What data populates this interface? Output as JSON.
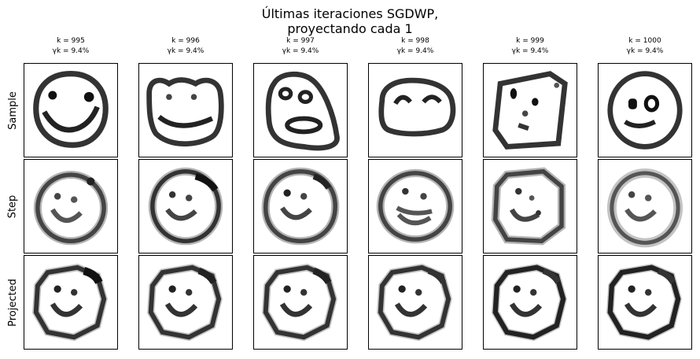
{
  "figure": {
    "title_line1": "Últimas iteraciones SGDWP,",
    "title_line2": "proyectando cada 1"
  },
  "columns": [
    {
      "k_label": "k = 995",
      "gamma_label": "γk = 9.4%"
    },
    {
      "k_label": "k = 996",
      "gamma_label": "γk = 9.4%"
    },
    {
      "k_label": "k = 997",
      "gamma_label": "γk = 9.4%"
    },
    {
      "k_label": "k = 998",
      "gamma_label": "γk = 9.4%"
    },
    {
      "k_label": "k = 999",
      "gamma_label": "γk = 9.4%"
    },
    {
      "k_label": "k = 1000",
      "gamma_label": "γk = 9.4%"
    }
  ],
  "rows": [
    {
      "label": "Sample"
    },
    {
      "label": "Step"
    },
    {
      "label": "Projected"
    }
  ],
  "panels": [
    [
      "sketch-smiley-wide-grin",
      "sketch-frog-face",
      "sketch-tilted-face-open-mouth",
      "sketch-arch-eyes-blob",
      "sketch-square-face",
      "sketch-ring-eyes-face"
    ],
    [
      "blurred-smiley",
      "blurred-smiley",
      "blurred-smiley",
      "blurred-smiley",
      "blurred-smiley",
      "blurred-smiley"
    ],
    [
      "projected-smiley",
      "projected-smiley",
      "projected-smiley",
      "projected-smiley",
      "projected-smiley",
      "projected-smiley"
    ]
  ]
}
